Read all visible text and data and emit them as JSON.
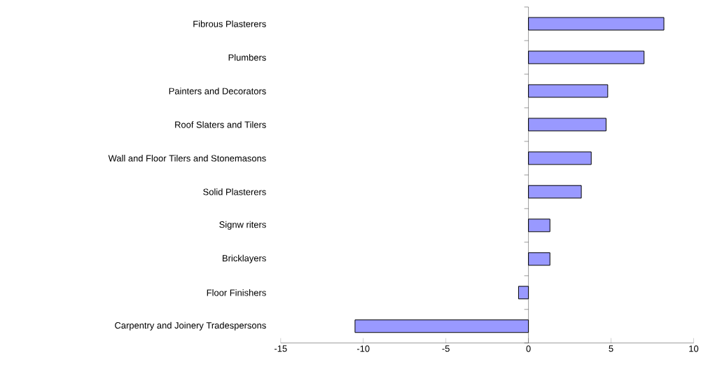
{
  "chart_data": {
    "type": "bar",
    "orientation": "horizontal",
    "categories": [
      "Fibrous Plasterers",
      "Plumbers",
      "Painters and Decorators",
      "Roof Slaters and Tilers",
      "Wall and Floor Tilers and Stonemasons",
      "Solid Plasterers",
      "Signw riters",
      "Bricklayers",
      "Floor Finishers",
      "Carpentry and Joinery Tradespersons"
    ],
    "values": [
      8.2,
      7.0,
      4.8,
      4.7,
      3.8,
      3.2,
      1.3,
      1.3,
      -0.6,
      -10.5
    ],
    "color": "#9999ff",
    "xlim": [
      -15,
      10
    ],
    "xticks": [
      -15,
      -10,
      -5,
      0,
      5,
      10
    ]
  }
}
